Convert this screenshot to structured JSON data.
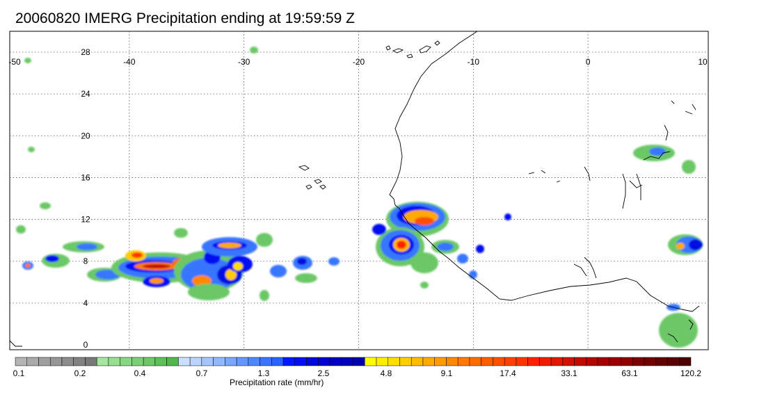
{
  "title": "20060820 IMERG Precipitation ending at 19:59:59 Z",
  "map": {
    "lon_range": [
      -50,
      10
    ],
    "lat_range": [
      -1,
      30
    ],
    "lon_ticks": [
      "-50",
      "-40",
      "-30",
      "-20",
      "-10",
      "0",
      "10"
    ],
    "lat_ticks": [
      "28",
      "24",
      "20",
      "16",
      "12",
      "8",
      "4",
      "0"
    ],
    "gridlines": "dotted"
  },
  "colorbar": {
    "label": "Precipitation rate (mm/hr)",
    "tick_labels": [
      "0.1",
      "0.2",
      "0.4",
      "0.7",
      "1.3",
      "2.5",
      "4.8",
      "9.1",
      "17.4",
      "33.1",
      "63.1",
      "120.2"
    ],
    "colors": [
      "#b4b4b4",
      "#aaaaaa",
      "#a0a0a0",
      "#969696",
      "#8c8c8c",
      "#828282",
      "#787878",
      "#a4e8a0",
      "#96e090",
      "#88d882",
      "#7ad074",
      "#6cc866",
      "#5ec058",
      "#50b84a",
      "#cce0ff",
      "#b8d4ff",
      "#a4c6ff",
      "#90b8ff",
      "#7aa8ff",
      "#6498ff",
      "#4e88ff",
      "#3876ff",
      "#2864ff",
      "#0018ff",
      "#0010f0",
      "#0008e0",
      "#0000d2",
      "#0000c4",
      "#0000b8",
      "#0000aa",
      "#ffff00",
      "#ffee00",
      "#ffdd00",
      "#ffcc00",
      "#ffbb00",
      "#ffaa00",
      "#ff9900",
      "#ff8800",
      "#ff7a00",
      "#ff6c00",
      "#ff5e00",
      "#ff5000",
      "#ff4200",
      "#ff3400",
      "#ff2200",
      "#f01e00",
      "#e01800",
      "#d01200",
      "#c00c00",
      "#b00800",
      "#a00400",
      "#960000",
      "#8a0000",
      "#7e0000",
      "#720000",
      "#660000",
      "#5a0000",
      "#4e0000"
    ]
  }
}
